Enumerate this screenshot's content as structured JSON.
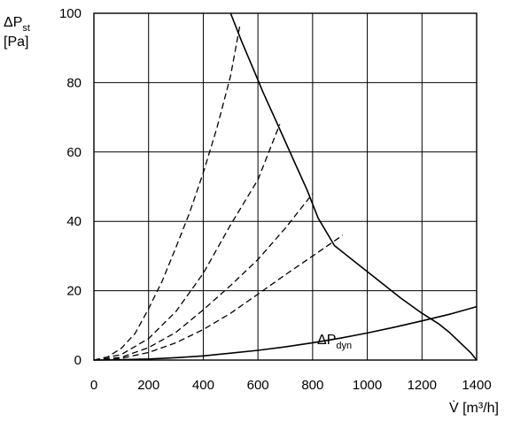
{
  "chart_data": {
    "type": "line",
    "xlim": [
      0,
      1400
    ],
    "ylim": [
      0,
      100
    ],
    "x_ticks": [
      0,
      200,
      400,
      600,
      800,
      1000,
      1200,
      1400
    ],
    "y_ticks": [
      0,
      20,
      40,
      60,
      80,
      100
    ],
    "grid": true,
    "xlabel": "V̇ [m³/h]",
    "ylabel": {
      "symbol": "ΔP",
      "sub": "st",
      "unit": "[Pa]"
    },
    "series": [
      {
        "name": "fan-curve",
        "style": "solid",
        "x": [
          500,
          540,
          580,
          620,
          660,
          700,
          740,
          780,
          820,
          880,
          960,
          1040,
          1120,
          1200,
          1260,
          1300,
          1340,
          1380,
          1400
        ],
        "y": [
          100,
          92,
          84.5,
          77,
          70,
          63,
          56,
          49,
          41,
          33,
          28,
          23,
          18,
          13.5,
          10.5,
          8,
          5,
          2,
          0
        ]
      },
      {
        "name": "dynamic-pressure",
        "label": {
          "symbol": "ΔP",
          "sub": "dyn"
        },
        "style": "solid",
        "x": [
          0,
          100,
          200,
          300,
          400,
          500,
          600,
          700,
          800,
          900,
          1000,
          1100,
          1200,
          1300,
          1400
        ],
        "y": [
          0,
          0.1,
          0.3,
          0.7,
          1.2,
          2,
          2.8,
          3.8,
          5,
          6.3,
          7.8,
          9.5,
          11.3,
          13.2,
          15.4
        ]
      },
      {
        "name": "system-curve-1",
        "style": "dashed",
        "x": [
          0,
          50,
          100,
          150,
          200,
          250,
          300,
          350,
          400,
          450,
          500,
          535
        ],
        "y": [
          0,
          0.9,
          3.4,
          7.6,
          14.8,
          22.8,
          32.5,
          42.5,
          54,
          67,
          82,
          97
        ]
      },
      {
        "name": "system-curve-2",
        "style": "dashed",
        "x": [
          0,
          100,
          200,
          300,
          400,
          500,
          600,
          680
        ],
        "y": [
          0,
          1.6,
          6.2,
          14,
          25,
          39,
          52,
          68
        ]
      },
      {
        "name": "system-curve-3",
        "style": "dashed",
        "x": [
          0,
          100,
          200,
          300,
          400,
          500,
          600,
          700,
          800
        ],
        "y": [
          0,
          0.8,
          3.6,
          8,
          14.5,
          21.5,
          29,
          38,
          48
        ]
      },
      {
        "name": "system-curve-4",
        "style": "dashed",
        "x": [
          0,
          100,
          200,
          300,
          400,
          500,
          600,
          700,
          800,
          910
        ],
        "y": [
          0,
          0.5,
          2.2,
          5,
          8.8,
          13.5,
          19,
          24.6,
          30,
          36
        ]
      }
    ]
  }
}
